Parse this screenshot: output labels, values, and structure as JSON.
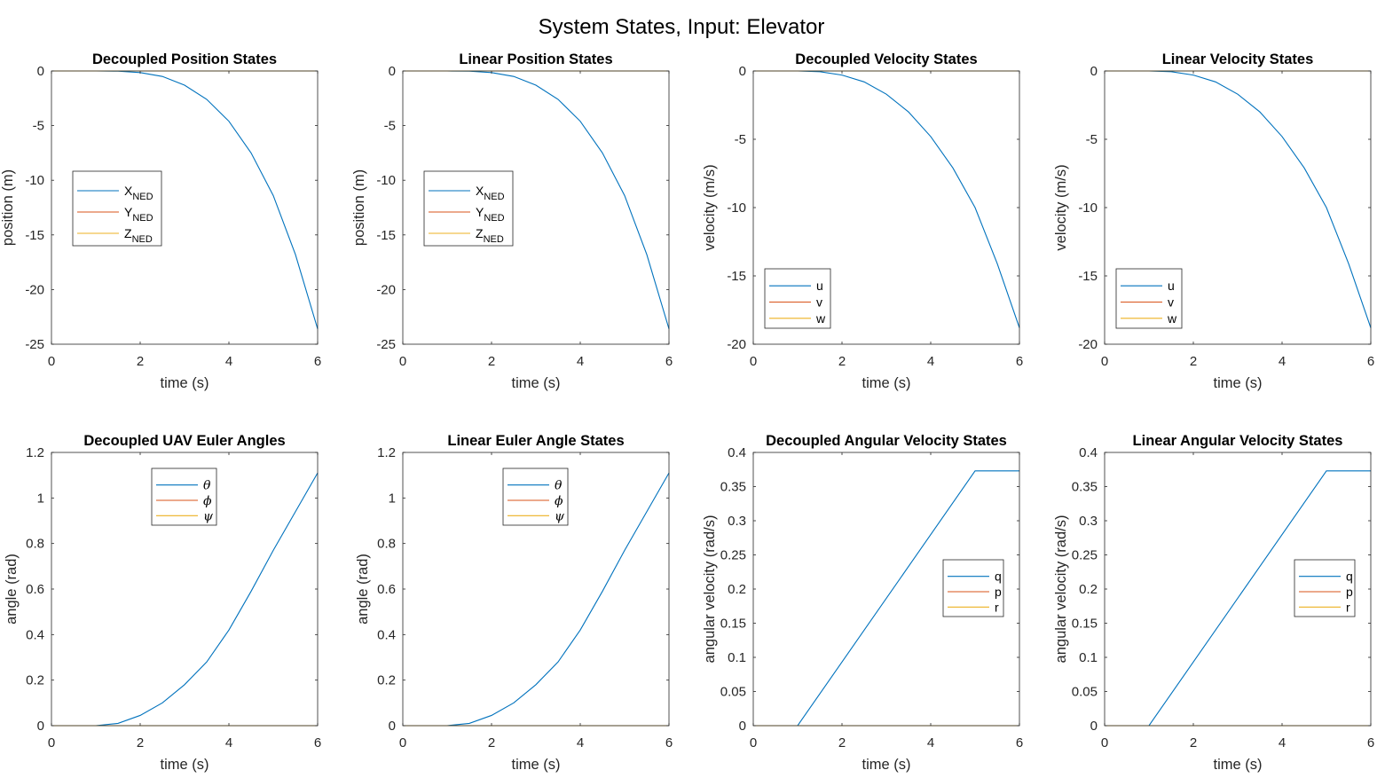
{
  "figure": {
    "title": "System States, Input: Elevator"
  },
  "chart_data": [
    {
      "type": "line",
      "title": "Decoupled Position States",
      "xlabel": "time (s)",
      "ylabel": "position (m)",
      "xlim": [
        0,
        6
      ],
      "ylim": [
        -25,
        0
      ],
      "xticks": [
        0,
        2,
        4,
        6
      ],
      "yticks": [
        -25,
        -20,
        -15,
        -10,
        -5,
        0
      ],
      "legend": {
        "placement": "center-left",
        "entries": [
          {
            "base": "X",
            "sub": "NED"
          },
          {
            "base": "Y",
            "sub": "NED"
          },
          {
            "base": "Z",
            "sub": "NED"
          }
        ]
      },
      "series": [
        {
          "name": "X_NED",
          "color": "#0072BD",
          "x": [
            0,
            1,
            1.5,
            2,
            2.5,
            3,
            3.5,
            4,
            4.5,
            5,
            5.5,
            6
          ],
          "y": [
            0,
            0,
            -0.02,
            -0.15,
            -0.5,
            -1.3,
            -2.6,
            -4.6,
            -7.5,
            -11.4,
            -16.8,
            -23.6
          ]
        },
        {
          "name": "Y_NED",
          "color": "#D95319",
          "x": [
            0,
            6
          ],
          "y": [
            0,
            0
          ]
        },
        {
          "name": "Z_NED",
          "color": "#EDB120",
          "x": [
            0,
            6
          ],
          "y": [
            0,
            0
          ]
        }
      ]
    },
    {
      "type": "line",
      "title": "Linear Position States",
      "xlabel": "time (s)",
      "ylabel": "position (m)",
      "xlim": [
        0,
        6
      ],
      "ylim": [
        -25,
        0
      ],
      "xticks": [
        0,
        2,
        4,
        6
      ],
      "yticks": [
        -25,
        -20,
        -15,
        -10,
        -5,
        0
      ],
      "legend": {
        "placement": "center-left",
        "entries": [
          {
            "base": "X",
            "sub": "NED"
          },
          {
            "base": "Y",
            "sub": "NED"
          },
          {
            "base": "Z",
            "sub": "NED"
          }
        ]
      },
      "series": [
        {
          "name": "X_NED",
          "color": "#0072BD",
          "x": [
            0,
            1,
            1.5,
            2,
            2.5,
            3,
            3.5,
            4,
            4.5,
            5,
            5.5,
            6
          ],
          "y": [
            0,
            0,
            -0.02,
            -0.15,
            -0.5,
            -1.3,
            -2.6,
            -4.6,
            -7.5,
            -11.4,
            -16.8,
            -23.6
          ]
        },
        {
          "name": "Y_NED",
          "color": "#D95319",
          "x": [
            0,
            6
          ],
          "y": [
            0,
            0
          ]
        },
        {
          "name": "Z_NED",
          "color": "#EDB120",
          "x": [
            0,
            6
          ],
          "y": [
            0,
            0
          ]
        }
      ]
    },
    {
      "type": "line",
      "title": "Decoupled Velocity States",
      "xlabel": "time (s)",
      "ylabel": "velocity (m/s)",
      "xlim": [
        0,
        6
      ],
      "ylim": [
        -20,
        0
      ],
      "xticks": [
        0,
        2,
        4,
        6
      ],
      "yticks": [
        -20,
        -15,
        -10,
        -5,
        0
      ],
      "legend": {
        "placement": "bottom-left",
        "entries": [
          {
            "base": "u"
          },
          {
            "base": "v"
          },
          {
            "base": "w"
          }
        ]
      },
      "series": [
        {
          "name": "u",
          "color": "#0072BD",
          "x": [
            0,
            1,
            1.5,
            2,
            2.5,
            3,
            3.5,
            4,
            4.5,
            5,
            5.5,
            6
          ],
          "y": [
            0,
            0,
            -0.05,
            -0.3,
            -0.8,
            -1.7,
            -3.0,
            -4.8,
            -7.1,
            -10.0,
            -14.1,
            -18.8
          ]
        },
        {
          "name": "v",
          "color": "#D95319",
          "x": [
            0,
            6
          ],
          "y": [
            0,
            0
          ]
        },
        {
          "name": "w",
          "color": "#EDB120",
          "x": [
            0,
            6
          ],
          "y": [
            0,
            0
          ]
        }
      ]
    },
    {
      "type": "line",
      "title": "Linear Velocity States",
      "xlabel": "time (s)",
      "ylabel": "velocity (m/s)",
      "xlim": [
        0,
        6
      ],
      "ylim": [
        -20,
        0
      ],
      "xticks": [
        0,
        2,
        4,
        6
      ],
      "yticks": [
        -20,
        -15,
        -10,
        -5,
        0
      ],
      "legend": {
        "placement": "bottom-left",
        "entries": [
          {
            "base": "u"
          },
          {
            "base": "v"
          },
          {
            "base": "w"
          }
        ]
      },
      "series": [
        {
          "name": "u",
          "color": "#0072BD",
          "x": [
            0,
            1,
            1.5,
            2,
            2.5,
            3,
            3.5,
            4,
            4.5,
            5,
            5.5,
            6
          ],
          "y": [
            0,
            0,
            -0.05,
            -0.3,
            -0.8,
            -1.7,
            -3.0,
            -4.8,
            -7.1,
            -10.0,
            -14.1,
            -18.8
          ]
        },
        {
          "name": "v",
          "color": "#D95319",
          "x": [
            0,
            6
          ],
          "y": [
            0,
            0
          ]
        },
        {
          "name": "w",
          "color": "#EDB120",
          "x": [
            0,
            6
          ],
          "y": [
            0,
            0
          ]
        }
      ]
    },
    {
      "type": "line",
      "title": "Decoupled UAV Euler Angles",
      "xlabel": "time (s)",
      "ylabel": "angle (rad)",
      "xlim": [
        0,
        6
      ],
      "ylim": [
        0,
        1.2
      ],
      "xticks": [
        0,
        2,
        4,
        6
      ],
      "yticks": [
        0,
        0.2,
        0.4,
        0.6,
        0.8,
        1,
        1.2
      ],
      "legend": {
        "placement": "top-center",
        "italic": true,
        "entries": [
          {
            "base": "θ"
          },
          {
            "base": "ϕ"
          },
          {
            "base": "ψ"
          }
        ]
      },
      "series": [
        {
          "name": "θ",
          "color": "#0072BD",
          "x": [
            0,
            1,
            1.5,
            2,
            2.5,
            3,
            3.5,
            4,
            4.5,
            5,
            5.5,
            6
          ],
          "y": [
            0,
            0,
            0.01,
            0.045,
            0.1,
            0.18,
            0.28,
            0.42,
            0.59,
            0.77,
            0.94,
            1.11
          ]
        },
        {
          "name": "ϕ",
          "color": "#D95319",
          "x": [
            0,
            6
          ],
          "y": [
            0,
            0
          ]
        },
        {
          "name": "ψ",
          "color": "#EDB120",
          "x": [
            0,
            6
          ],
          "y": [
            0,
            0
          ]
        }
      ]
    },
    {
      "type": "line",
      "title": "Linear Euler Angle States",
      "xlabel": "time (s)",
      "ylabel": "angle (rad)",
      "xlim": [
        0,
        6
      ],
      "ylim": [
        0,
        1.2
      ],
      "xticks": [
        0,
        2,
        4,
        6
      ],
      "yticks": [
        0,
        0.2,
        0.4,
        0.6,
        0.8,
        1,
        1.2
      ],
      "legend": {
        "placement": "top-center",
        "italic": true,
        "entries": [
          {
            "base": "θ"
          },
          {
            "base": "ϕ"
          },
          {
            "base": "ψ"
          }
        ]
      },
      "series": [
        {
          "name": "θ",
          "color": "#0072BD",
          "x": [
            0,
            1,
            1.5,
            2,
            2.5,
            3,
            3.5,
            4,
            4.5,
            5,
            5.5,
            6
          ],
          "y": [
            0,
            0,
            0.01,
            0.045,
            0.1,
            0.18,
            0.28,
            0.42,
            0.59,
            0.77,
            0.94,
            1.11
          ]
        },
        {
          "name": "ϕ",
          "color": "#D95319",
          "x": [
            0,
            6
          ],
          "y": [
            0,
            0
          ]
        },
        {
          "name": "ψ",
          "color": "#EDB120",
          "x": [
            0,
            6
          ],
          "y": [
            0,
            0
          ]
        }
      ]
    },
    {
      "type": "line",
      "title": "Decoupled Angular Velocity States",
      "xlabel": "time (s)",
      "ylabel": "angular velocity (rad/s)",
      "xlim": [
        0,
        6
      ],
      "ylim": [
        0,
        0.4
      ],
      "xticks": [
        0,
        2,
        4,
        6
      ],
      "yticks": [
        0,
        0.05,
        0.1,
        0.15,
        0.2,
        0.25,
        0.3,
        0.35,
        0.4
      ],
      "legend": {
        "placement": "right",
        "entries": [
          {
            "base": "q"
          },
          {
            "base": "p"
          },
          {
            "base": "r"
          }
        ]
      },
      "series": [
        {
          "name": "q",
          "color": "#0072BD",
          "x": [
            0,
            1,
            5,
            6
          ],
          "y": [
            0,
            0,
            0.373,
            0.373
          ]
        },
        {
          "name": "p",
          "color": "#D95319",
          "x": [
            0,
            6
          ],
          "y": [
            0,
            0
          ]
        },
        {
          "name": "r",
          "color": "#EDB120",
          "x": [
            0,
            6
          ],
          "y": [
            0,
            0
          ]
        }
      ]
    },
    {
      "type": "line",
      "title": "Linear Angular Velocity States",
      "xlabel": "time (s)",
      "ylabel": "angular velocity (rad/s)",
      "xlim": [
        0,
        6
      ],
      "ylim": [
        0,
        0.4
      ],
      "xticks": [
        0,
        2,
        4,
        6
      ],
      "yticks": [
        0,
        0.05,
        0.1,
        0.15,
        0.2,
        0.25,
        0.3,
        0.35,
        0.4
      ],
      "legend": {
        "placement": "right",
        "entries": [
          {
            "base": "q"
          },
          {
            "base": "p"
          },
          {
            "base": "r"
          }
        ]
      },
      "series": [
        {
          "name": "q",
          "color": "#0072BD",
          "x": [
            0,
            1,
            5,
            6
          ],
          "y": [
            0,
            0,
            0.373,
            0.373
          ]
        },
        {
          "name": "p",
          "color": "#D95319",
          "x": [
            0,
            6
          ],
          "y": [
            0,
            0
          ]
        },
        {
          "name": "r",
          "color": "#EDB120",
          "x": [
            0,
            6
          ],
          "y": [
            0,
            0
          ]
        }
      ]
    }
  ]
}
